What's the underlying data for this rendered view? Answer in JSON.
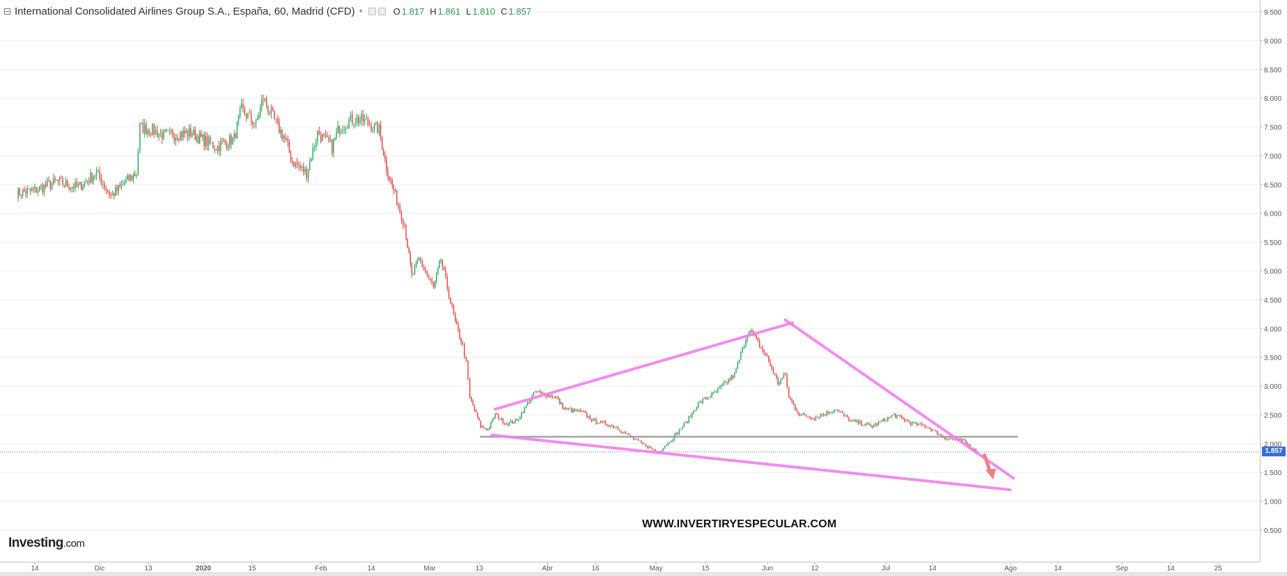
{
  "header": {
    "title": "International Consolidated Airlines Group S.A., España, 60, Madrid (CFD)",
    "ohlc": [
      {
        "label": "O",
        "value": "1.817"
      },
      {
        "label": "H",
        "value": "1.861"
      },
      {
        "label": "L",
        "value": "1.810"
      },
      {
        "label": "C",
        "value": "1.857"
      }
    ]
  },
  "branding": {
    "logo_main": "Investing",
    "logo_suffix": ".com",
    "watermark": "WWW.INVERTIRYESPECULAR.COM"
  },
  "colors": {
    "up": "#26a65b",
    "down": "#e2413e",
    "trendline": "#f27ef0",
    "support": "#999999",
    "price_line": "#3a6fd8",
    "arrow": "#f08080",
    "grid": "#eeeeee"
  },
  "chart_data": {
    "type": "line",
    "title": "International Consolidated Airlines Group S.A., España, 60, Madrid (CFD)",
    "ylim": [
      0.0,
      9.7
    ],
    "y_ticks": [
      "0.500",
      "1.000",
      "1.500",
      "2.000",
      "2.500",
      "3.000",
      "3.500",
      "4.000",
      "4.500",
      "5.000",
      "5.500",
      "6.000",
      "6.500",
      "7.000",
      "7.500",
      "8.000",
      "8.500",
      "9.000",
      "9.500"
    ],
    "x_ticks": [
      "14",
      "Dic",
      "13",
      "2020",
      "15",
      "Feb",
      "14",
      "Mar",
      "13",
      "Abr",
      "16",
      "May",
      "15",
      "Jun",
      "12",
      "Jul",
      "14",
      "Ago",
      "14",
      "Sep",
      "14",
      "25"
    ],
    "last_price": "1.857",
    "price_series": {
      "x": [
        "2019-11-09",
        "2019-11-14",
        "2019-11-20",
        "2019-11-26",
        "2019-12-01",
        "2019-12-05",
        "2019-12-10",
        "2019-12-12",
        "2019-12-13",
        "2019-12-16",
        "2019-12-20",
        "2019-12-27",
        "2020-01-03",
        "2020-01-08",
        "2020-01-10",
        "2020-01-14",
        "2020-01-16",
        "2020-01-20",
        "2020-01-22",
        "2020-01-24",
        "2020-01-28",
        "2020-01-31",
        "2020-02-04",
        "2020-02-06",
        "2020-02-10",
        "2020-02-13",
        "2020-02-17",
        "2020-02-19",
        "2020-02-21",
        "2020-02-24",
        "2020-02-26",
        "2020-02-28",
        "2020-03-03",
        "2020-03-05",
        "2020-03-09",
        "2020-03-11",
        "2020-03-12",
        "2020-03-13",
        "2020-03-16",
        "2020-03-18",
        "2020-03-20",
        "2020-03-23",
        "2020-03-26",
        "2020-03-31",
        "2020-04-06",
        "2020-04-08",
        "2020-04-13",
        "2020-04-16",
        "2020-04-22",
        "2020-04-28",
        "2020-05-04",
        "2020-05-08",
        "2020-05-12",
        "2020-05-15",
        "2020-05-20",
        "2020-05-25",
        "2020-05-29",
        "2020-06-03",
        "2020-06-06",
        "2020-06-08",
        "2020-06-09",
        "2020-06-12",
        "2020-06-16",
        "2020-06-22",
        "2020-06-26",
        "2020-07-02",
        "2020-07-08",
        "2020-07-13",
        "2020-07-17",
        "2020-07-22",
        "2020-07-27",
        "2020-07-29",
        "2020-07-31"
      ],
      "close": [
        6.35,
        6.4,
        6.55,
        6.45,
        6.7,
        6.3,
        6.6,
        6.7,
        7.5,
        7.45,
        7.35,
        7.4,
        7.15,
        7.3,
        7.8,
        7.55,
        8.0,
        7.5,
        7.3,
        6.9,
        6.7,
        7.4,
        7.15,
        7.5,
        7.65,
        7.6,
        7.45,
        6.8,
        6.4,
        5.8,
        4.9,
        5.2,
        4.7,
        5.2,
        4.1,
        3.7,
        3.4,
        2.8,
        2.3,
        2.25,
        2.5,
        2.35,
        2.4,
        2.9,
        2.8,
        2.6,
        2.55,
        2.4,
        2.3,
        2.05,
        1.85,
        2.1,
        2.4,
        2.7,
        2.9,
        3.2,
        4.0,
        3.5,
        3.05,
        3.2,
        2.8,
        2.5,
        2.45,
        2.6,
        2.4,
        2.3,
        2.5,
        2.35,
        2.3,
        2.1,
        2.05,
        1.95,
        1.857
      ]
    },
    "annotations": {
      "upper_rising_line": {
        "x": [
          "2020-03-20",
          "2020-06-10"
        ],
        "y": [
          2.6,
          4.1
        ]
      },
      "falling_resistance": {
        "x": [
          "2020-06-08",
          "2020-08-10"
        ],
        "y": [
          4.15,
          1.4
        ]
      },
      "lower_falling_line": {
        "x": [
          "2020-03-19",
          "2020-08-09"
        ],
        "y": [
          2.15,
          1.2
        ]
      },
      "horizontal_support": {
        "x": [
          "2020-03-16",
          "2020-08-11"
        ],
        "y": [
          2.12,
          2.12
        ]
      },
      "down_arrow": {
        "x": [
          "2020-08-02",
          "2020-08-04"
        ],
        "y": [
          1.8,
          1.4
        ]
      }
    }
  }
}
